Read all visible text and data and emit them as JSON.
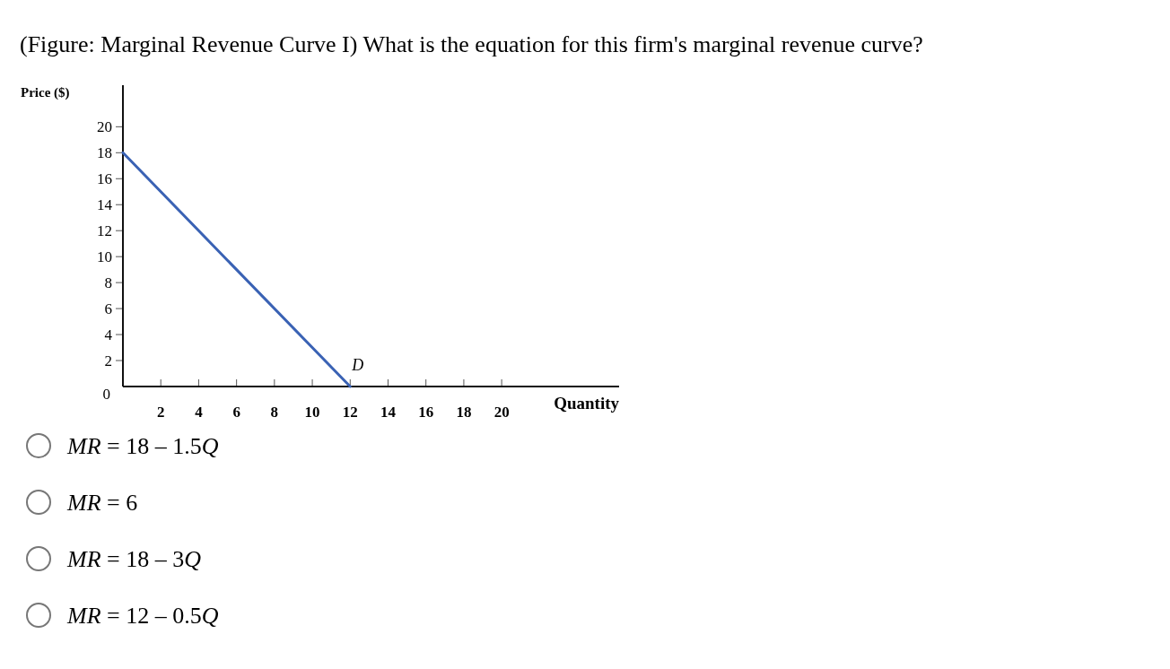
{
  "chart_data": {
    "type": "line",
    "title": "(Figure: Marginal Revenue Curve I) What is the equation for this firm's marginal revenue curve?",
    "xlabel": "Quantity",
    "ylabel": "Price ($)",
    "x": [
      0,
      12
    ],
    "series": [
      {
        "name": "D",
        "color": "#3a62b4",
        "values": [
          18,
          0
        ]
      }
    ],
    "xlim": [
      0,
      26.2
    ],
    "ylim": [
      0,
      23.2
    ],
    "xticks": [
      2,
      4,
      6,
      8,
      10,
      12,
      14,
      16,
      18,
      20
    ],
    "yticks": [
      0,
      2,
      4,
      6,
      8,
      10,
      12,
      14,
      16,
      18,
      20
    ],
    "annotations": [
      "MR = 18 – 1.5Q",
      "MR = 6",
      "MR = 18 – 3Q",
      "MR = 12 – 0.5Q"
    ]
  }
}
